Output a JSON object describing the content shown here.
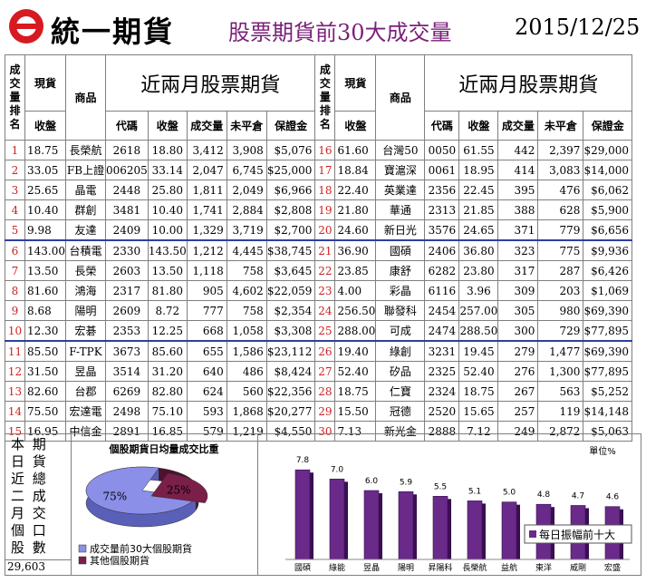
{
  "header": {
    "brand": "統一期貨",
    "title": "股票期貨前30大成交量",
    "date": "2015/12/25"
  },
  "table": {
    "rank_label": "成交量排名",
    "spot_label": "現貨",
    "close_label": "收盤",
    "product_label": "商品",
    "section_title": "近兩月股票期貨",
    "col_code": "代碼",
    "col_close": "收盤",
    "col_volume": "成交量",
    "col_oi": "未平倉",
    "col_margin": "保證金",
    "left": [
      {
        "rank": "1",
        "spot": "18.75",
        "name": "長榮航",
        "code": "2618",
        "close": "18.80",
        "vol": "3,412",
        "oi": "3,908",
        "margin": "$5,076"
      },
      {
        "rank": "2",
        "spot": "33.05",
        "name": "FB上證",
        "code": "006205",
        "close": "33.14",
        "vol": "2,047",
        "oi": "6,745",
        "margin": "$25,000"
      },
      {
        "rank": "3",
        "spot": "25.65",
        "name": "晶電",
        "code": "2448",
        "close": "25.80",
        "vol": "1,811",
        "oi": "2,049",
        "margin": "$6,966"
      },
      {
        "rank": "4",
        "spot": "10.40",
        "name": "群創",
        "code": "3481",
        "close": "10.40",
        "vol": "1,741",
        "oi": "2,884",
        "margin": "$2,808"
      },
      {
        "rank": "5",
        "spot": "9.98",
        "name": "友達",
        "code": "2409",
        "close": "10.00",
        "vol": "1,329",
        "oi": "3,719",
        "margin": "$2,700"
      },
      {
        "rank": "6",
        "spot": "143.00",
        "name": "台積電",
        "code": "2330",
        "close": "143.50",
        "vol": "1,212",
        "oi": "4,445",
        "margin": "$38,745"
      },
      {
        "rank": "7",
        "spot": "13.50",
        "name": "長榮",
        "code": "2603",
        "close": "13.50",
        "vol": "1,118",
        "oi": "758",
        "margin": "$3,645"
      },
      {
        "rank": "8",
        "spot": "81.60",
        "name": "鴻海",
        "code": "2317",
        "close": "81.80",
        "vol": "905",
        "oi": "4,602",
        "margin": "$22,059"
      },
      {
        "rank": "9",
        "spot": "8.68",
        "name": "陽明",
        "code": "2609",
        "close": "8.72",
        "vol": "777",
        "oi": "758",
        "margin": "$2,354"
      },
      {
        "rank": "10",
        "spot": "12.30",
        "name": "宏碁",
        "code": "2353",
        "close": "12.25",
        "vol": "668",
        "oi": "1,058",
        "margin": "$3,308"
      },
      {
        "rank": "11",
        "spot": "85.50",
        "name": "F-TPK",
        "code": "3673",
        "close": "85.60",
        "vol": "655",
        "oi": "1,586",
        "margin": "$23,112"
      },
      {
        "rank": "12",
        "spot": "31.50",
        "name": "昱晶",
        "code": "3514",
        "close": "31.20",
        "vol": "640",
        "oi": "486",
        "margin": "$8,424"
      },
      {
        "rank": "13",
        "spot": "82.60",
        "name": "台郡",
        "code": "6269",
        "close": "82.80",
        "vol": "624",
        "oi": "560",
        "margin": "$22,356"
      },
      {
        "rank": "14",
        "spot": "75.50",
        "name": "宏達電",
        "code": "2498",
        "close": "75.10",
        "vol": "593",
        "oi": "1,868",
        "margin": "$20,277"
      },
      {
        "rank": "15",
        "spot": "16.95",
        "name": "中信金",
        "code": "2891",
        "close": "16.85",
        "vol": "579",
        "oi": "1,219",
        "margin": "$4,550"
      }
    ],
    "right": [
      {
        "rank": "16",
        "spot": "61.60",
        "name": "台灣50",
        "code": "0050",
        "close": "61.55",
        "vol": "442",
        "oi": "2,397",
        "margin": "$29,000"
      },
      {
        "rank": "17",
        "spot": "18.84",
        "name": "寶滬深",
        "code": "0061",
        "close": "18.95",
        "vol": "414",
        "oi": "3,083",
        "margin": "$14,000"
      },
      {
        "rank": "18",
        "spot": "22.40",
        "name": "英業達",
        "code": "2356",
        "close": "22.45",
        "vol": "395",
        "oi": "476",
        "margin": "$6,062"
      },
      {
        "rank": "19",
        "spot": "21.80",
        "name": "華通",
        "code": "2313",
        "close": "21.85",
        "vol": "388",
        "oi": "628",
        "margin": "$5,900"
      },
      {
        "rank": "20",
        "spot": "24.60",
        "name": "新日光",
        "code": "3576",
        "close": "24.65",
        "vol": "371",
        "oi": "779",
        "margin": "$6,656"
      },
      {
        "rank": "21",
        "spot": "36.90",
        "name": "國碩",
        "code": "2406",
        "close": "36.80",
        "vol": "323",
        "oi": "775",
        "margin": "$9,936"
      },
      {
        "rank": "22",
        "spot": "23.85",
        "name": "康舒",
        "code": "6282",
        "close": "23.80",
        "vol": "317",
        "oi": "287",
        "margin": "$6,426"
      },
      {
        "rank": "23",
        "spot": "4.00",
        "name": "彩晶",
        "code": "6116",
        "close": "3.96",
        "vol": "309",
        "oi": "203",
        "margin": "$1,069"
      },
      {
        "rank": "24",
        "spot": "256.50",
        "name": "聯發科",
        "code": "2454",
        "close": "257.00",
        "vol": "305",
        "oi": "980",
        "margin": "$69,390"
      },
      {
        "rank": "25",
        "spot": "288.00",
        "name": "可成",
        "code": "2474",
        "close": "288.50",
        "vol": "300",
        "oi": "729",
        "margin": "$77,895"
      },
      {
        "rank": "26",
        "spot": "19.40",
        "name": "綠創",
        "code": "3231",
        "close": "19.45",
        "vol": "279",
        "oi": "1,477",
        "margin": "$69,390"
      },
      {
        "rank": "27",
        "spot": "52.40",
        "name": "矽品",
        "code": "2325",
        "close": "52.40",
        "vol": "276",
        "oi": "1,300",
        "margin": "$77,895"
      },
      {
        "rank": "28",
        "spot": "18.75",
        "name": "仁寶",
        "code": "2324",
        "close": "18.75",
        "vol": "267",
        "oi": "563",
        "margin": "$5,252"
      },
      {
        "rank": "29",
        "spot": "15.50",
        "name": "冠德",
        "code": "2520",
        "close": "15.65",
        "vol": "257",
        "oi": "119",
        "margin": "$14,148"
      },
      {
        "rank": "30",
        "spot": "7.13",
        "name": "新光金",
        "code": "2888",
        "close": "7.12",
        "vol": "249",
        "oi": "2,872",
        "margin": "$5,063"
      }
    ]
  },
  "bottom_left": {
    "columns": [
      "本日近二月個股",
      "期貨總成交口數"
    ],
    "total": "29,603"
  },
  "chart_data": [
    {
      "type": "pie",
      "title": "個股期貨日均量成交比重",
      "labels": [
        "成交量前30大個股期貨",
        "其他個股期貨"
      ],
      "values": [
        75,
        25
      ],
      "value_labels": [
        "75%",
        "25%"
      ],
      "colors": [
        "#8b8fe8",
        "#7a1f4a"
      ],
      "legend": "bottom"
    },
    {
      "type": "bar",
      "title": "",
      "unit_label": "單位%",
      "categories": [
        "國碩",
        "綠能",
        "昱晶",
        "陽明",
        "昇陽科",
        "長榮航",
        "益航",
        "東洋",
        "威剛",
        "宏盛"
      ],
      "values": [
        7.8,
        7.0,
        6.0,
        5.9,
        5.5,
        5.1,
        5.0,
        4.8,
        4.7,
        4.6
      ],
      "value_labels": [
        "7.8",
        "7.0",
        "6.0",
        "5.9",
        "5.5",
        "5.1",
        "5.0",
        "4.8",
        "4.7",
        "4.6"
      ],
      "series": [
        {
          "name": "每日振幅前十大",
          "values": [
            7.8,
            7.0,
            6.0,
            5.9,
            5.5,
            5.1,
            5.0,
            4.8,
            4.7,
            4.6
          ]
        }
      ],
      "color": "#6a2a8a",
      "ylim": [
        0,
        9
      ],
      "grid": false,
      "legend": "bottom-right"
    }
  ]
}
